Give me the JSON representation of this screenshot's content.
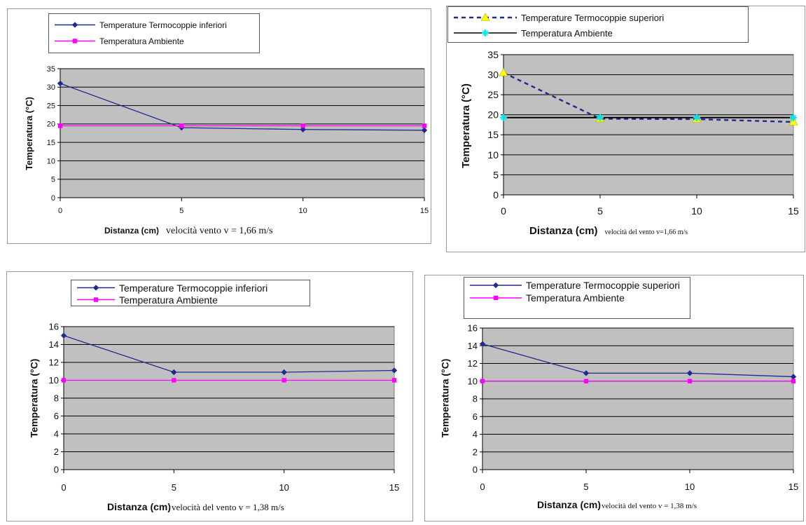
{
  "chart_data": [
    {
      "type": "line",
      "x": [
        0,
        5,
        10,
        15
      ],
      "xlabel": "Distanza (cm)",
      "caption": "velocità vento v = 1,66 m/s",
      "ylabel": "Temperatura (°C)",
      "ylim": [
        0,
        35
      ],
      "yticks": [
        0,
        5,
        10,
        15,
        20,
        25,
        30,
        35
      ],
      "grid": true,
      "legend_position": "top",
      "series": [
        {
          "name": "Temperature Termocoppie inferiori",
          "values": [
            31,
            19,
            18.5,
            18.3
          ],
          "color": "#1f2a8c",
          "marker": "diamond",
          "line": "solid"
        },
        {
          "name": "Temperatura Ambiente",
          "values": [
            19.5,
            19.5,
            19.5,
            19.5
          ],
          "color": "#ff00ff",
          "marker": "square",
          "line": "solid"
        }
      ]
    },
    {
      "type": "line",
      "x": [
        0,
        5,
        10,
        15
      ],
      "xlabel": "Distanza (cm)",
      "caption": "velocità del vento v=1,66 m/s",
      "ylabel": "Temperatura (°C)",
      "ylim": [
        0,
        35
      ],
      "yticks": [
        0,
        5,
        10,
        15,
        20,
        25,
        30,
        35
      ],
      "grid": true,
      "legend_position": "top",
      "series": [
        {
          "name": "Temperature Termocoppie superiori",
          "values": [
            30.5,
            19,
            18.9,
            18.2
          ],
          "color": "#1f2a8c",
          "marker": "triangle",
          "marker_color": "#ffff00",
          "line": "dashed"
        },
        {
          "name": "Temperatura Ambiente",
          "values": [
            19.3,
            19.3,
            19.3,
            19.3
          ],
          "color": "#000000",
          "marker": "star",
          "marker_color": "#00e5ee",
          "line": "solid"
        }
      ]
    },
    {
      "type": "line",
      "x": [
        0,
        5,
        10,
        15
      ],
      "xlabel": "Distanza (cm)",
      "caption": "velocità del vento v = 1,38 m/s",
      "ylabel": "Temperatura (°C)",
      "ylim": [
        0,
        16
      ],
      "yticks": [
        0,
        2,
        4,
        6,
        8,
        10,
        12,
        14,
        16
      ],
      "grid": true,
      "legend_position": "top",
      "series": [
        {
          "name": "Temperature Termocoppie inferiori",
          "values": [
            15,
            10.9,
            10.9,
            11.1
          ],
          "color": "#1f2a8c",
          "marker": "diamond",
          "line": "solid"
        },
        {
          "name": "Temperatura Ambiente",
          "values": [
            10,
            10,
            10,
            10
          ],
          "color": "#ff00ff",
          "marker": "square",
          "line": "solid"
        }
      ]
    },
    {
      "type": "line",
      "x": [
        0,
        5,
        10,
        15
      ],
      "xlabel": "Distanza (cm)",
      "caption": "velocità del vento v = 1,38 m/s",
      "ylabel": "Temperatura (°C)",
      "ylim": [
        0,
        16
      ],
      "yticks": [
        0,
        2,
        4,
        6,
        8,
        10,
        12,
        14,
        16
      ],
      "grid": true,
      "legend_position": "top",
      "series": [
        {
          "name": "Temperature Termocoppie superiori",
          "values": [
            14.2,
            10.9,
            10.9,
            10.5
          ],
          "color": "#1f2a8c",
          "marker": "diamond",
          "line": "solid"
        },
        {
          "name": "Temperatura Ambiente",
          "values": [
            10,
            10,
            10,
            10
          ],
          "color": "#ff00ff",
          "marker": "square",
          "line": "solid"
        }
      ]
    }
  ]
}
